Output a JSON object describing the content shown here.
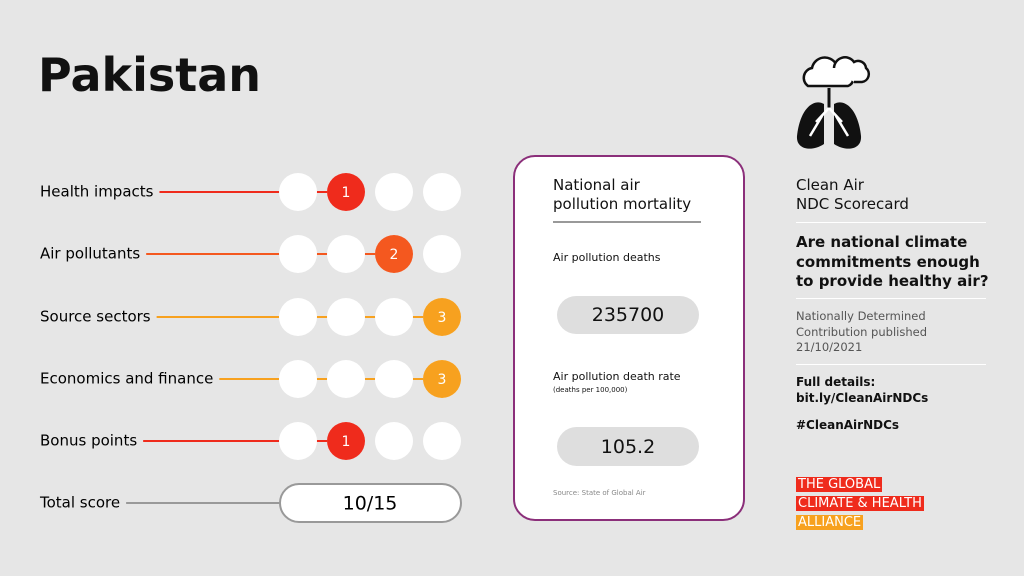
{
  "header": {
    "title": "Pakistan"
  },
  "scores": {
    "rows": [
      {
        "label": "Health impacts",
        "score": 1,
        "color": "#ef2b1c"
      },
      {
        "label": "Air pollutants",
        "score": 2,
        "color": "#f4581f"
      },
      {
        "label": "Source sectors",
        "score": 3,
        "color": "#f7a11f"
      },
      {
        "label": "Economics and finance",
        "score": 3,
        "color": "#f7a11f"
      },
      {
        "label": "Bonus points",
        "score": 1,
        "color": "#ef2b1c"
      }
    ],
    "total": {
      "label": "Total score",
      "value": "10/15"
    }
  },
  "mortality": {
    "title_lines": [
      "National air",
      "pollution mortality"
    ],
    "deaths_label": "Air pollution deaths",
    "deaths": 235700,
    "rate_label": "Air pollution death rate",
    "rate_unit": "(deaths per 100,000)",
    "rate": 105.2,
    "source": "Source: State of Global Air"
  },
  "sidebar": {
    "title_lines": [
      "Clean Air",
      "NDC Scorecard"
    ],
    "question_lines": [
      "Are national climate",
      "commitments enough",
      "to provide healthy air?"
    ],
    "published_lines": [
      "Nationally Determined",
      "Contribution published",
      "21/10/2021"
    ],
    "details_label": "Full details:",
    "link": "bit.ly/CleanAirNDCs",
    "hashtag": "#CleanAirNDCs",
    "logo_lines": [
      "THE GLOBAL",
      "CLIMATE & HEALTH",
      "ALLIANCE"
    ]
  }
}
